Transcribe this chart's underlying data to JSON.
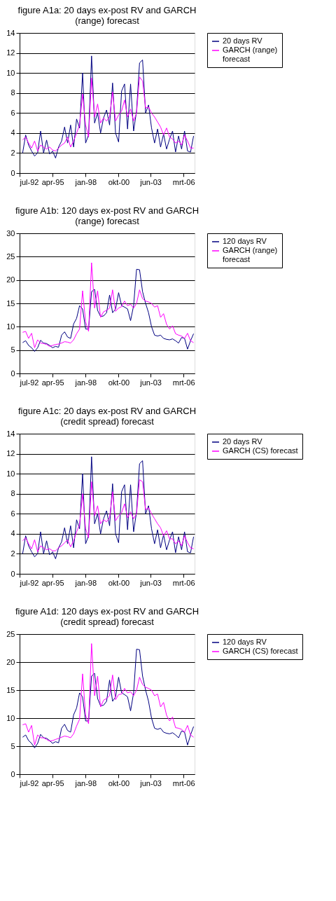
{
  "chart_data": [
    {
      "type": "line",
      "title": "figure A1a: 20 days ex-post RV and GARCH (range) forecast",
      "x": [
        "1992-10",
        "1993-01",
        "1993-04",
        "1993-07",
        "1993-10",
        "1994-01",
        "1994-04",
        "1994-07",
        "1994-10",
        "1995-01",
        "1995-04",
        "1995-07",
        "1995-10",
        "1996-01",
        "1996-04",
        "1996-07",
        "1996-10",
        "1997-01",
        "1997-04",
        "1997-07",
        "1997-10",
        "1998-01",
        "1998-04",
        "1998-07",
        "1998-10",
        "1999-01",
        "1999-04",
        "1999-07",
        "1999-10",
        "2000-01",
        "2000-04",
        "2000-07",
        "2000-10",
        "2001-01",
        "2001-04",
        "2001-07",
        "2001-10",
        "2002-01",
        "2002-04",
        "2002-07",
        "2002-10",
        "2003-01",
        "2003-04",
        "2003-07",
        "2003-10",
        "2004-01",
        "2004-04",
        "2004-07",
        "2004-10",
        "2005-01",
        "2005-04",
        "2005-07",
        "2005-10",
        "2006-01",
        "2006-04",
        "2006-07",
        "2006-10",
        "2007-01"
      ],
      "series": [
        {
          "name": "20 days RV",
          "color": "#000080",
          "values": [
            2.0,
            3.8,
            2.8,
            2.2,
            1.7,
            2.0,
            4.2,
            2.0,
            3.3,
            1.9,
            2.2,
            1.5,
            2.6,
            3.2,
            4.6,
            3.0,
            4.8,
            2.6,
            5.4,
            4.5,
            10.0,
            3.0,
            3.8,
            11.7,
            5.0,
            6.0,
            4.0,
            5.5,
            6.3,
            4.8,
            9.0,
            4.0,
            3.1,
            8.2,
            8.9,
            4.4,
            8.9,
            4.2,
            6.2,
            11.0,
            11.3,
            6.0,
            6.8,
            4.5,
            3.0,
            4.4,
            2.6,
            3.9,
            2.4,
            3.4,
            4.2,
            2.1,
            3.7,
            2.4,
            4.2,
            2.2,
            2.1,
            3.7
          ]
        },
        {
          "name": "GARCH (range) forecast",
          "color": "#ff00ff",
          "values": [
            3.3,
            3.6,
            3.0,
            2.5,
            3.2,
            2.2,
            2.8,
            2.6,
            2.4,
            2.6,
            2.3,
            2.2,
            2.5,
            2.8,
            3.0,
            3.6,
            2.6,
            3.2,
            4.0,
            4.8,
            7.9,
            4.8,
            3.6,
            9.5,
            5.6,
            6.9,
            5.0,
            5.5,
            5.2,
            5.6,
            8.1,
            5.2,
            5.8,
            6.2,
            7.3,
            5.6,
            6.4,
            5.2,
            6.0,
            9.6,
            9.2,
            6.5,
            6.6,
            6.0,
            5.6,
            5.1,
            4.6,
            3.8,
            4.5,
            3.6,
            3.4,
            3.0,
            3.2,
            2.8,
            3.8,
            3.2,
            2.5,
            2.5
          ]
        }
      ],
      "xlim": [
        "1992-07",
        "2007-02"
      ],
      "xticks": [
        {
          "value": "1992-07",
          "label": "jul-92"
        },
        {
          "value": "1995-04",
          "label": "apr-95"
        },
        {
          "value": "1998-01",
          "label": "jan-98"
        },
        {
          "value": "2000-10",
          "label": "okt-00"
        },
        {
          "value": "2003-06",
          "label": "jun-03"
        },
        {
          "value": "2006-03",
          "label": "mrt-06"
        }
      ],
      "ylim": [
        0,
        14
      ],
      "yticks": [
        0,
        2,
        4,
        6,
        8,
        10,
        12,
        14
      ],
      "grid": "y",
      "legend": "right"
    },
    {
      "type": "line",
      "title": "figure A1b: 120 days ex-post RV and GARCH (range) forecast",
      "x": [
        "1992-10",
        "1993-01",
        "1993-04",
        "1993-07",
        "1993-10",
        "1994-01",
        "1994-04",
        "1994-07",
        "1994-10",
        "1995-01",
        "1995-04",
        "1995-07",
        "1995-10",
        "1996-01",
        "1996-04",
        "1996-07",
        "1996-10",
        "1997-01",
        "1997-04",
        "1997-07",
        "1997-10",
        "1998-01",
        "1998-04",
        "1998-07",
        "1998-10",
        "1999-01",
        "1999-04",
        "1999-07",
        "1999-10",
        "2000-01",
        "2000-04",
        "2000-07",
        "2000-10",
        "2001-01",
        "2001-04",
        "2001-07",
        "2001-10",
        "2002-01",
        "2002-04",
        "2002-07",
        "2002-10",
        "2003-01",
        "2003-04",
        "2003-07",
        "2003-10",
        "2004-01",
        "2004-04",
        "2004-07",
        "2004-10",
        "2005-01",
        "2005-04",
        "2005-07",
        "2005-10",
        "2006-01",
        "2006-04",
        "2006-07",
        "2006-10",
        "2007-01"
      ],
      "series": [
        {
          "name": "120 days RV",
          "color": "#000080",
          "values": [
            6.6,
            7.0,
            6.0,
            5.5,
            4.7,
            5.5,
            7.1,
            6.5,
            6.4,
            6.0,
            5.5,
            5.8,
            5.6,
            8.2,
            8.9,
            7.8,
            7.5,
            10.6,
            11.8,
            14.5,
            13.8,
            9.5,
            9.5,
            17.5,
            18.0,
            13.5,
            12.2,
            12.3,
            13.0,
            16.8,
            13.0,
            13.8,
            17.3,
            14.5,
            14.2,
            13.8,
            11.3,
            14.5,
            22.3,
            22.2,
            17.5,
            15.0,
            13.0,
            10.0,
            8.2,
            8.0,
            8.2,
            7.5,
            7.3,
            7.2,
            7.4,
            7.0,
            6.5,
            7.7,
            7.5,
            5.2,
            7.0,
            8.5
          ]
        },
        {
          "name": "GARCH (range) forecast",
          "color": "#ff00ff",
          "values": [
            8.8,
            9.0,
            7.5,
            8.6,
            5.5,
            7.2,
            6.5,
            6.4,
            6.2,
            5.8,
            6.0,
            6.2,
            6.3,
            6.5,
            6.8,
            6.7,
            6.5,
            7.2,
            8.5,
            9.5,
            17.7,
            11.0,
            9.0,
            23.7,
            14.0,
            17.7,
            12.0,
            13.2,
            13.5,
            14.0,
            17.9,
            13.3,
            14.0,
            14.3,
            15.5,
            14.5,
            14.8,
            14.0,
            15.0,
            17.9,
            16.0,
            15.5,
            15.3,
            15.0,
            14.2,
            14.5,
            12.0,
            12.8,
            10.5,
            9.5,
            10.2,
            8.5,
            8.2,
            8.0,
            7.5,
            8.6,
            7.0,
            6.6
          ]
        }
      ],
      "xlim": [
        "1992-07",
        "2007-02"
      ],
      "xticks": [
        {
          "value": "1992-07",
          "label": "jul-92"
        },
        {
          "value": "1995-04",
          "label": "apr-95"
        },
        {
          "value": "1998-01",
          "label": "jan-98"
        },
        {
          "value": "2000-10",
          "label": "okt-00"
        },
        {
          "value": "2003-06",
          "label": "jun-03"
        },
        {
          "value": "2006-03",
          "label": "mrt-06"
        }
      ],
      "ylim": [
        0,
        30
      ],
      "yticks": [
        0,
        5,
        10,
        15,
        20,
        25,
        30
      ],
      "grid": "y",
      "legend": "right"
    },
    {
      "type": "line",
      "title": "figure A1c: 20 days ex-post RV and GARCH (credit spread) forecast",
      "x": [
        "1992-10",
        "1993-01",
        "1993-04",
        "1993-07",
        "1993-10",
        "1994-01",
        "1994-04",
        "1994-07",
        "1994-10",
        "1995-01",
        "1995-04",
        "1995-07",
        "1995-10",
        "1996-01",
        "1996-04",
        "1996-07",
        "1996-10",
        "1997-01",
        "1997-04",
        "1997-07",
        "1997-10",
        "1998-01",
        "1998-04",
        "1998-07",
        "1998-10",
        "1999-01",
        "1999-04",
        "1999-07",
        "1999-10",
        "2000-01",
        "2000-04",
        "2000-07",
        "2000-10",
        "2001-01",
        "2001-04",
        "2001-07",
        "2001-10",
        "2002-01",
        "2002-04",
        "2002-07",
        "2002-10",
        "2003-01",
        "2003-04",
        "2003-07",
        "2003-10",
        "2004-01",
        "2004-04",
        "2004-07",
        "2004-10",
        "2005-01",
        "2005-04",
        "2005-07",
        "2005-10",
        "2006-01",
        "2006-04",
        "2006-07",
        "2006-10",
        "2007-01"
      ],
      "series": [
        {
          "name": "20 days RV",
          "color": "#000080",
          "values": [
            2.0,
            3.8,
            2.8,
            2.2,
            1.7,
            2.0,
            4.2,
            2.0,
            3.3,
            1.9,
            2.2,
            1.5,
            2.6,
            3.2,
            4.6,
            3.0,
            4.8,
            2.6,
            5.4,
            4.5,
            10.0,
            3.0,
            3.8,
            11.7,
            5.0,
            6.0,
            4.0,
            5.5,
            6.3,
            4.8,
            9.0,
            4.0,
            3.1,
            8.2,
            8.9,
            4.4,
            8.9,
            4.2,
            6.2,
            11.0,
            11.3,
            6.0,
            6.8,
            4.5,
            3.0,
            4.4,
            2.6,
            3.9,
            2.4,
            3.4,
            4.2,
            2.1,
            3.7,
            2.4,
            4.2,
            2.2,
            2.1,
            3.7
          ]
        },
        {
          "name": "GARCH (CS) forecast",
          "color": "#ff00ff",
          "values": [
            3.3,
            3.6,
            3.0,
            2.5,
            3.4,
            2.2,
            2.8,
            2.6,
            2.4,
            2.5,
            2.3,
            2.3,
            2.6,
            2.8,
            3.1,
            3.4,
            2.7,
            3.3,
            4.2,
            4.9,
            8.0,
            4.5,
            3.6,
            9.2,
            5.8,
            6.8,
            5.0,
            5.4,
            5.2,
            5.6,
            8.2,
            5.3,
            5.8,
            6.1,
            7.0,
            5.6,
            6.2,
            5.5,
            6.0,
            9.4,
            9.2,
            6.4,
            6.6,
            6.0,
            5.5,
            5.0,
            4.6,
            3.8,
            4.3,
            3.5,
            3.5,
            3.0,
            3.3,
            2.8,
            3.8,
            3.1,
            2.6,
            2.5
          ]
        }
      ],
      "xlim": [
        "1992-07",
        "2007-02"
      ],
      "xticks": [
        {
          "value": "1992-07",
          "label": "jul-92"
        },
        {
          "value": "1995-04",
          "label": "apr-95"
        },
        {
          "value": "1998-01",
          "label": "jan-98"
        },
        {
          "value": "2000-10",
          "label": "okt-00"
        },
        {
          "value": "2003-06",
          "label": "jun-03"
        },
        {
          "value": "2006-03",
          "label": "mrt-06"
        }
      ],
      "ylim": [
        0,
        14
      ],
      "yticks": [
        0,
        2,
        4,
        6,
        8,
        10,
        12,
        14
      ],
      "grid": "y",
      "legend": "right"
    },
    {
      "type": "line",
      "title": "figure A1d: 120 days ex-post RV and GARCH (credit spread) forecast",
      "x": [
        "1992-10",
        "1993-01",
        "1993-04",
        "1993-07",
        "1993-10",
        "1994-01",
        "1994-04",
        "1994-07",
        "1994-10",
        "1995-01",
        "1995-04",
        "1995-07",
        "1995-10",
        "1996-01",
        "1996-04",
        "1996-07",
        "1996-10",
        "1997-01",
        "1997-04",
        "1997-07",
        "1997-10",
        "1998-01",
        "1998-04",
        "1998-07",
        "1998-10",
        "1999-01",
        "1999-04",
        "1999-07",
        "1999-10",
        "2000-01",
        "2000-04",
        "2000-07",
        "2000-10",
        "2001-01",
        "2001-04",
        "2001-07",
        "2001-10",
        "2002-01",
        "2002-04",
        "2002-07",
        "2002-10",
        "2003-01",
        "2003-04",
        "2003-07",
        "2003-10",
        "2004-01",
        "2004-04",
        "2004-07",
        "2004-10",
        "2005-01",
        "2005-04",
        "2005-07",
        "2005-10",
        "2006-01",
        "2006-04",
        "2006-07",
        "2006-10",
        "2007-01"
      ],
      "series": [
        {
          "name": "120 days RV",
          "color": "#000080",
          "values": [
            6.6,
            7.0,
            6.0,
            5.5,
            4.7,
            5.5,
            7.1,
            6.5,
            6.4,
            6.0,
            5.5,
            5.8,
            5.6,
            8.2,
            8.9,
            7.8,
            7.5,
            10.6,
            11.8,
            14.5,
            13.8,
            9.5,
            9.5,
            17.5,
            18.0,
            13.5,
            12.2,
            12.3,
            13.0,
            16.8,
            13.0,
            13.8,
            17.3,
            14.5,
            14.2,
            13.8,
            11.3,
            14.5,
            22.3,
            22.2,
            17.5,
            15.0,
            13.0,
            10.0,
            8.2,
            8.0,
            8.2,
            7.5,
            7.3,
            7.2,
            7.4,
            7.0,
            6.5,
            7.7,
            7.5,
            5.2,
            7.0,
            8.5
          ]
        },
        {
          "name": "GARCH (CS) forecast",
          "color": "#ff00ff",
          "values": [
            8.8,
            9.0,
            7.5,
            8.7,
            5.2,
            7.0,
            6.5,
            6.5,
            6.2,
            5.9,
            6.0,
            6.2,
            6.4,
            6.6,
            6.8,
            6.7,
            6.5,
            7.2,
            8.6,
            9.8,
            17.9,
            10.5,
            9.0,
            23.3,
            14.0,
            17.5,
            12.0,
            13.2,
            13.5,
            14.0,
            17.7,
            13.3,
            14.2,
            14.3,
            15.3,
            14.5,
            14.7,
            14.0,
            15.0,
            17.3,
            16.0,
            15.5,
            15.3,
            15.0,
            14.0,
            14.3,
            12.0,
            12.8,
            10.5,
            9.5,
            10.2,
            8.3,
            8.2,
            8.0,
            7.5,
            8.7,
            7.0,
            6.6
          ]
        }
      ],
      "xlim": [
        "1992-07",
        "2007-02"
      ],
      "xticks": [
        {
          "value": "1992-07",
          "label": "jul-92"
        },
        {
          "value": "1995-04",
          "label": "apr-95"
        },
        {
          "value": "1998-01",
          "label": "jan-98"
        },
        {
          "value": "2000-10",
          "label": "okt-00"
        },
        {
          "value": "2003-06",
          "label": "jun-03"
        },
        {
          "value": "2006-03",
          "label": "mrt-06"
        }
      ],
      "ylim": [
        0,
        25
      ],
      "yticks": [
        0,
        5,
        10,
        15,
        20,
        25
      ],
      "grid": "y",
      "legend": "right"
    }
  ]
}
